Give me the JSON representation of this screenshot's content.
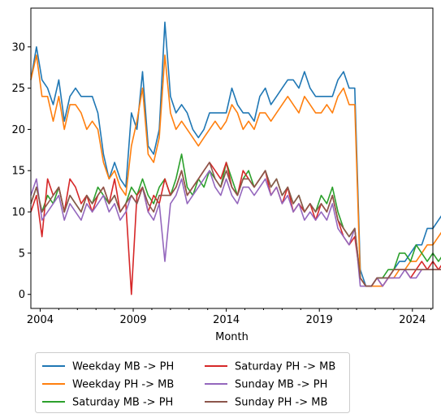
{
  "chart_data": {
    "type": "line",
    "title": "",
    "xlabel": "Month",
    "ylabel": "",
    "xlim": [
      2003.5,
      2025.1
    ],
    "ylim": [
      -1.7,
      34.7
    ],
    "x_ticks": [
      2004,
      2009,
      2014,
      2019,
      2024
    ],
    "x_tick_labels": [
      "2004",
      "2009",
      "2014",
      "2019",
      "2024"
    ],
    "y_ticks": [
      0,
      5,
      10,
      15,
      20,
      25,
      30
    ],
    "y_tick_labels": [
      "0",
      "5",
      "10",
      "15",
      "20",
      "25",
      "30"
    ],
    "x_start": 2003.5,
    "x_step": 0.3,
    "grid": false,
    "legend_position": "bottom-center, below the axes",
    "series": [
      {
        "name": "Weekday MB -> PH",
        "color": "#1f77b4",
        "values": [
          26,
          30,
          26,
          25,
          23,
          26,
          21,
          24,
          25,
          24,
          24,
          24,
          22,
          17,
          14,
          16,
          14,
          13,
          22,
          20,
          27,
          18,
          17,
          20,
          33,
          24,
          22,
          23,
          22,
          20,
          19,
          20,
          22,
          22,
          22,
          22,
          25,
          23,
          22,
          22,
          21,
          24,
          25,
          23,
          24,
          25,
          26,
          26,
          25,
          27,
          25,
          24,
          24,
          24,
          24,
          26,
          27,
          25,
          25,
          3,
          1,
          1,
          2,
          2,
          2,
          3,
          4,
          4,
          5,
          6,
          6,
          8,
          8,
          9,
          10,
          9
        ]
      },
      {
        "name": "Weekday PH -> MB",
        "color": "#ff7f0e",
        "values": [
          26,
          29,
          24,
          24,
          21,
          24,
          20,
          23,
          23,
          22,
          20,
          21,
          20,
          16,
          14,
          15,
          13,
          12,
          18,
          21,
          25,
          17,
          16,
          19,
          29,
          22,
          20,
          21,
          20,
          19,
          18,
          19,
          20,
          21,
          20,
          21,
          23,
          22,
          20,
          21,
          20,
          22,
          22,
          21,
          22,
          23,
          24,
          23,
          22,
          24,
          23,
          22,
          22,
          23,
          22,
          24,
          25,
          23,
          23,
          2,
          1,
          1,
          1,
          1,
          2,
          2,
          3,
          3,
          4,
          4,
          5,
          6,
          6,
          7,
          8,
          8
        ]
      },
      {
        "name": "Saturday MB -> PH",
        "color": "#2ca02c",
        "values": [
          11,
          13,
          10,
          12,
          11,
          13,
          10,
          12,
          11,
          10,
          12,
          11,
          13,
          12,
          11,
          12,
          10,
          11,
          13,
          12,
          14,
          12,
          11,
          13,
          14,
          12,
          14,
          17,
          13,
          12,
          14,
          13,
          15,
          14,
          13,
          16,
          14,
          12,
          14,
          15,
          13,
          14,
          15,
          13,
          14,
          12,
          13,
          11,
          12,
          10,
          11,
          10,
          12,
          11,
          13,
          10,
          8,
          7,
          8,
          2,
          1,
          1,
          2,
          2,
          3,
          3,
          5,
          5,
          4,
          6,
          5,
          4,
          5,
          4,
          5,
          4
        ]
      },
      {
        "name": "Saturday PH -> MB",
        "color": "#d62728",
        "values": [
          10,
          12,
          7,
          14,
          12,
          13,
          10,
          14,
          13,
          11,
          12,
          10,
          12,
          13,
          11,
          14,
          10,
          11,
          0,
          12,
          13,
          10,
          12,
          11,
          14,
          12,
          13,
          15,
          12,
          13,
          14,
          15,
          16,
          15,
          14,
          16,
          13,
          12,
          15,
          14,
          13,
          14,
          15,
          12,
          13,
          11,
          13,
          10,
          11,
          10,
          11,
          9,
          11,
          10,
          12,
          9,
          7,
          6,
          7,
          2,
          1,
          1,
          2,
          1,
          2,
          3,
          3,
          3,
          2,
          3,
          4,
          3,
          4,
          3,
          4,
          3
        ]
      },
      {
        "name": "Sunday MB -> PH",
        "color": "#9467bd",
        "values": [
          12,
          14,
          9,
          10,
          11,
          12,
          9,
          11,
          10,
          9,
          11,
          10,
          11,
          12,
          10,
          11,
          9,
          10,
          12,
          11,
          13,
          10,
          9,
          11,
          4,
          11,
          12,
          14,
          11,
          12,
          13,
          14,
          15,
          13,
          12,
          14,
          12,
          11,
          13,
          13,
          12,
          13,
          14,
          12,
          13,
          11,
          12,
          10,
          11,
          9,
          10,
          9,
          10,
          9,
          11,
          8,
          7,
          6,
          8,
          1,
          1,
          1,
          2,
          1,
          2,
          2,
          2,
          3,
          2,
          2,
          3,
          3,
          3,
          3,
          3,
          2
        ]
      },
      {
        "name": "Sunday PH -> MB",
        "color": "#8c564b",
        "values": [
          11,
          13,
          10,
          11,
          12,
          13,
          10,
          12,
          11,
          10,
          12,
          11,
          12,
          13,
          11,
          12,
          10,
          11,
          12,
          11,
          13,
          11,
          10,
          12,
          12,
          12,
          13,
          15,
          12,
          13,
          14,
          15,
          16,
          14,
          13,
          15,
          13,
          12,
          14,
          14,
          13,
          14,
          15,
          13,
          14,
          12,
          13,
          11,
          12,
          10,
          11,
          10,
          11,
          10,
          12,
          9,
          8,
          7,
          8,
          2,
          1,
          1,
          2,
          2,
          2,
          3,
          3,
          3,
          3,
          3,
          3,
          3,
          3,
          3,
          3,
          3
        ]
      }
    ]
  }
}
